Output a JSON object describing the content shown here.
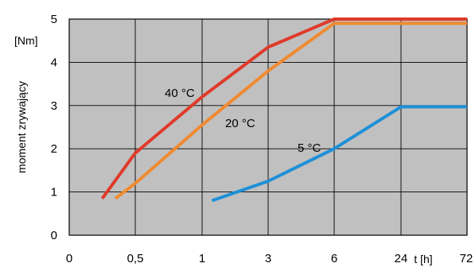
{
  "chart_data": {
    "type": "line",
    "ylabel": "moment zrywający",
    "yunit": "[Nm]",
    "xunit": "t [h]",
    "x_tick_labels": [
      "0",
      "0,5",
      "1",
      "3",
      "6",
      "24",
      "72"
    ],
    "y_tick_labels": [
      "0",
      "1",
      "2",
      "3",
      "4",
      "5"
    ],
    "ylim": [
      0,
      5
    ],
    "grid": true,
    "series": [
      {
        "name": "40 °C",
        "color": "#e03a2a",
        "x": [
          0.25,
          0.5,
          1,
          3,
          6,
          24,
          72
        ],
        "y": [
          0.85,
          1.9,
          3.2,
          4.35,
          5.0,
          5.0,
          5.0
        ]
      },
      {
        "name": "20 °C",
        "color": "#f08a30",
        "x": [
          0.35,
          0.5,
          1,
          3,
          6,
          24,
          72
        ],
        "y": [
          0.85,
          1.2,
          2.55,
          3.8,
          4.9,
          4.9,
          4.9
        ]
      },
      {
        "name": "5 °C",
        "color": "#1e90d8",
        "x": [
          1.3,
          3,
          6,
          24,
          72
        ],
        "y": [
          0.8,
          1.25,
          2.0,
          2.97,
          2.97
        ]
      }
    ],
    "annotations": [
      {
        "text": "40 °C",
        "series": 0
      },
      {
        "text": "20 °C",
        "series": 1
      },
      {
        "text": "5 °C",
        "series": 2
      }
    ]
  }
}
